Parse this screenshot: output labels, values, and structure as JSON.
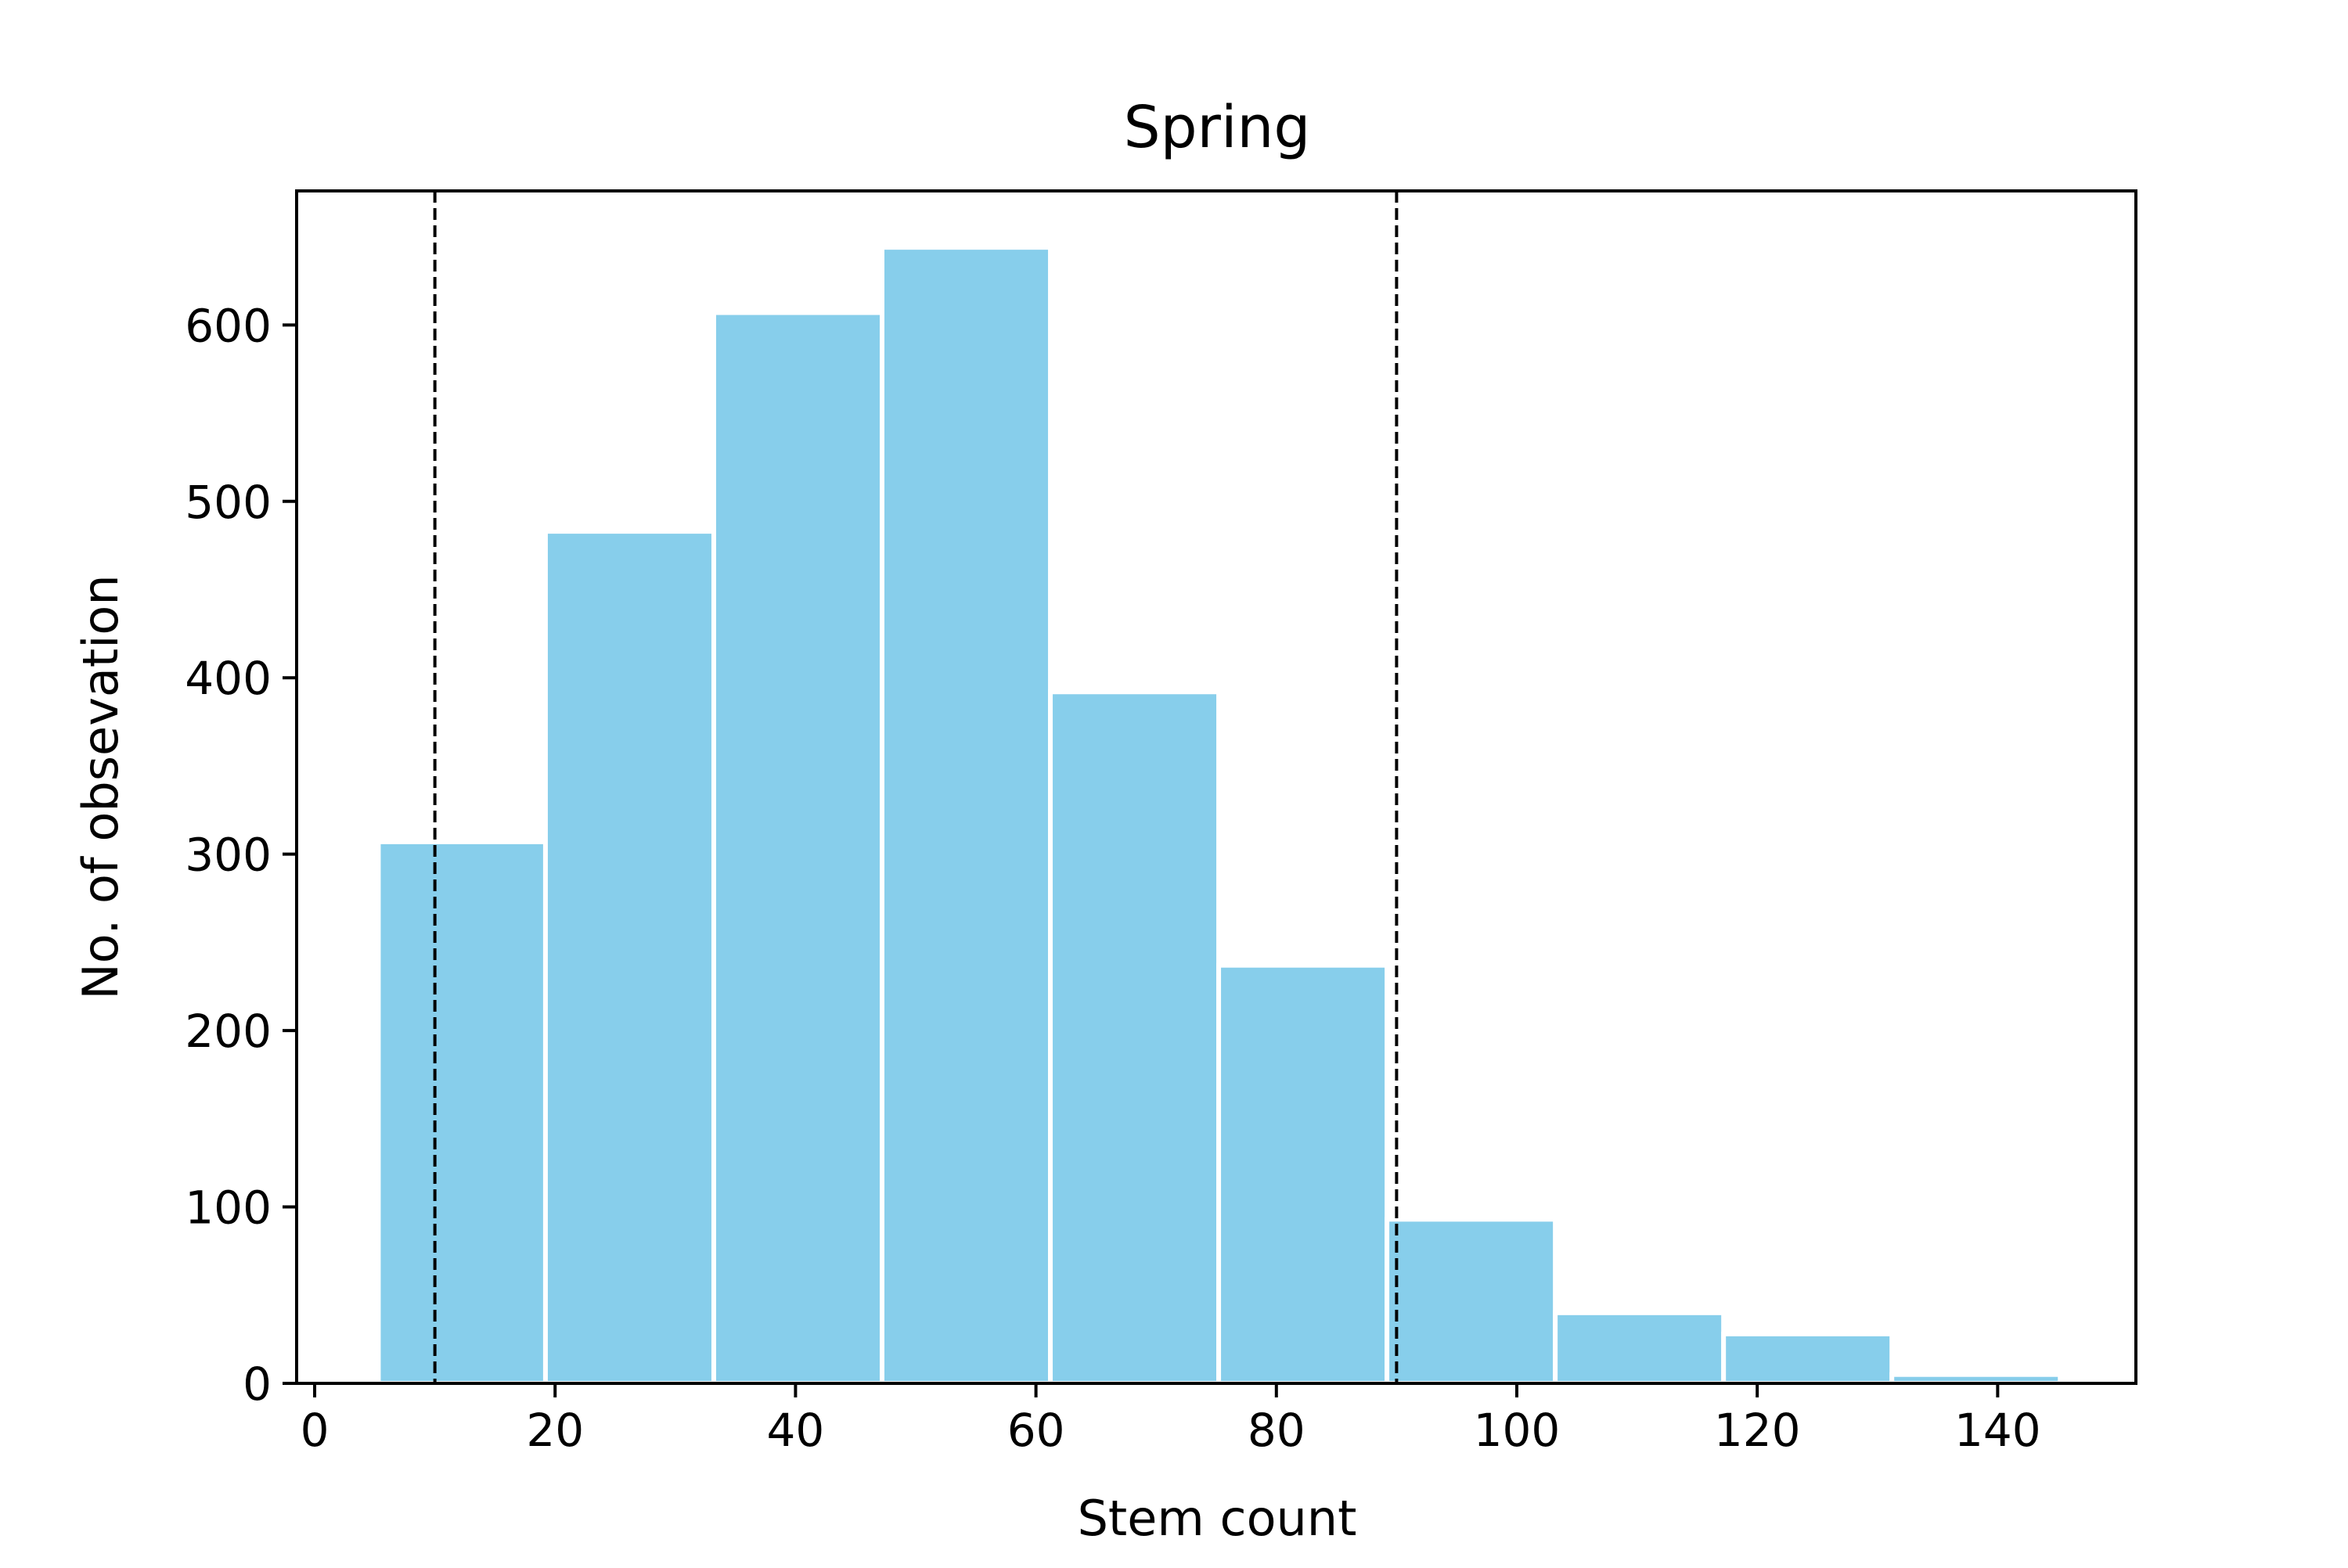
{
  "chart_data": {
    "type": "bar",
    "title": "Spring",
    "xlabel": "Stem count",
    "ylabel": "No. of obsevation",
    "bins": [
      {
        "start": 5.3,
        "end": 19.2,
        "count": 307
      },
      {
        "start": 19.2,
        "end": 33.2,
        "count": 483
      },
      {
        "start": 33.2,
        "end": 47.2,
        "count": 607
      },
      {
        "start": 47.2,
        "end": 61.2,
        "count": 644
      },
      {
        "start": 61.2,
        "end": 75.2,
        "count": 392
      },
      {
        "start": 75.2,
        "end": 89.2,
        "count": 237
      },
      {
        "start": 89.2,
        "end": 103.2,
        "count": 93
      },
      {
        "start": 103.2,
        "end": 117.2,
        "count": 40
      },
      {
        "start": 117.2,
        "end": 131.2,
        "count": 28
      },
      {
        "start": 131.2,
        "end": 145.2,
        "count": 5
      }
    ],
    "reference_lines": [
      {
        "x": 10,
        "style": "dashed",
        "color": "#000000"
      },
      {
        "x": 90,
        "style": "dashed",
        "color": "#000000"
      }
    ],
    "xlim": [
      -1.5,
      151.5
    ],
    "ylim": [
      0,
      676
    ],
    "xticks": [
      "0",
      "20",
      "40",
      "60",
      "80",
      "100",
      "120",
      "140"
    ],
    "yticks": [
      "0",
      "100",
      "200",
      "300",
      "400",
      "500",
      "600"
    ],
    "bar_color": "#87ceeb",
    "grid": false,
    "legend": false
  }
}
